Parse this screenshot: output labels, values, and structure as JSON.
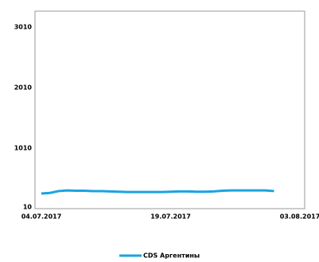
{
  "chart_data": {
    "type": "line",
    "categories": [
      "04.07.2017",
      null,
      null,
      null,
      null,
      null,
      null,
      null,
      null,
      null,
      null,
      null,
      null,
      null,
      null,
      "19.07.2017",
      null,
      null,
      null,
      null,
      null,
      null,
      null,
      null,
      null,
      null,
      null,
      null,
      null,
      null,
      "03.08.2017"
    ],
    "series": [
      {
        "name": "CDS Аргентины",
        "color": "#1aa3e0",
        "values": [
          260,
          270,
          300,
          310,
          305,
          305,
          300,
          300,
          295,
          290,
          285,
          285,
          285,
          285,
          285,
          290,
          295,
          295,
          290,
          290,
          295,
          305,
          310,
          310,
          310,
          310,
          310,
          300,
          null,
          null,
          null
        ]
      }
    ],
    "ylim": [
      10,
      3270
    ],
    "yticks": [
      10,
      1010,
      2010,
      3010
    ],
    "grid": false,
    "legend": "bottom"
  }
}
